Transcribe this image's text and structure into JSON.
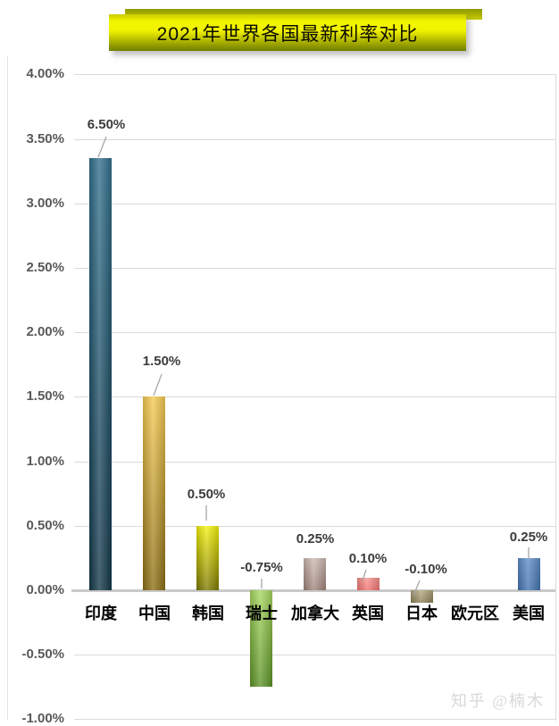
{
  "title_banner": {
    "text": "2021年世界各国最新利率对比",
    "bg_top_color": "#f3f600",
    "bg_bottom_color": "#6f7d00",
    "backstrip_color": "#8f9900",
    "text_color": "#0c0c00"
  },
  "watermark": "知乎 @楠木",
  "chart_data": {
    "type": "bar",
    "title": "2021年世界各国最新利率对比",
    "categories": [
      "印度",
      "中国",
      "韩国",
      "瑞士",
      "加拿大",
      "英国",
      "日本",
      "欧元区",
      "美国"
    ],
    "category_slugs": [
      "india",
      "china",
      "south-korea",
      "switzerland",
      "canada",
      "uk",
      "japan",
      "eurozone",
      "usa"
    ],
    "values": [
      6.5,
      1.5,
      0.5,
      -0.75,
      0.25,
      0.1,
      -0.1,
      0.0,
      0.25
    ],
    "value_labels": [
      "6.50%",
      "1.50%",
      "0.50%",
      "-0.75%",
      "0.25%",
      "0.10%",
      "-0.10%",
      "",
      "0.25%"
    ],
    "bar_drawn_values": [
      3.35,
      1.5,
      0.5,
      -0.75,
      0.25,
      0.1,
      -0.1,
      0,
      0.25
    ],
    "ylim": [
      -1.0,
      4.0
    ],
    "y_tick_values": [
      4.0,
      3.5,
      3.0,
      2.5,
      2.0,
      1.5,
      1.0,
      0.5,
      0.0,
      -0.5,
      -1.0
    ],
    "y_tick_labels": [
      "4.00%",
      "3.50%",
      "3.00%",
      "2.50%",
      "2.00%",
      "1.50%",
      "1.00%",
      "0.50%",
      "0.00%",
      "-0.50%",
      "-1.00%"
    ],
    "grid": true,
    "legend": false,
    "xlabel": "",
    "ylabel": "",
    "bar_colors": [
      {
        "top": "#316f8b",
        "bottom": "#133749"
      },
      {
        "top": "#f5ca52",
        "bottom": "#8a6d14"
      },
      {
        "top": "#f4f20c",
        "bottom": "#7c7800"
      },
      {
        "top": "#a8d860",
        "bottom": "#5b9226"
      },
      {
        "top": "#cdb9b4",
        "bottom": "#9f8379"
      },
      {
        "top": "#f7938e",
        "bottom": "#f0706d"
      },
      {
        "top": "#b3a87e",
        "bottom": "#8a8059"
      },
      {
        "top": "#ffffff",
        "bottom": "#ffffff"
      },
      {
        "top": "#5f8dc6",
        "bottom": "#4273b0"
      }
    ],
    "gridline_color": "#dadada",
    "leader_line_color": "#a6a6a6"
  }
}
